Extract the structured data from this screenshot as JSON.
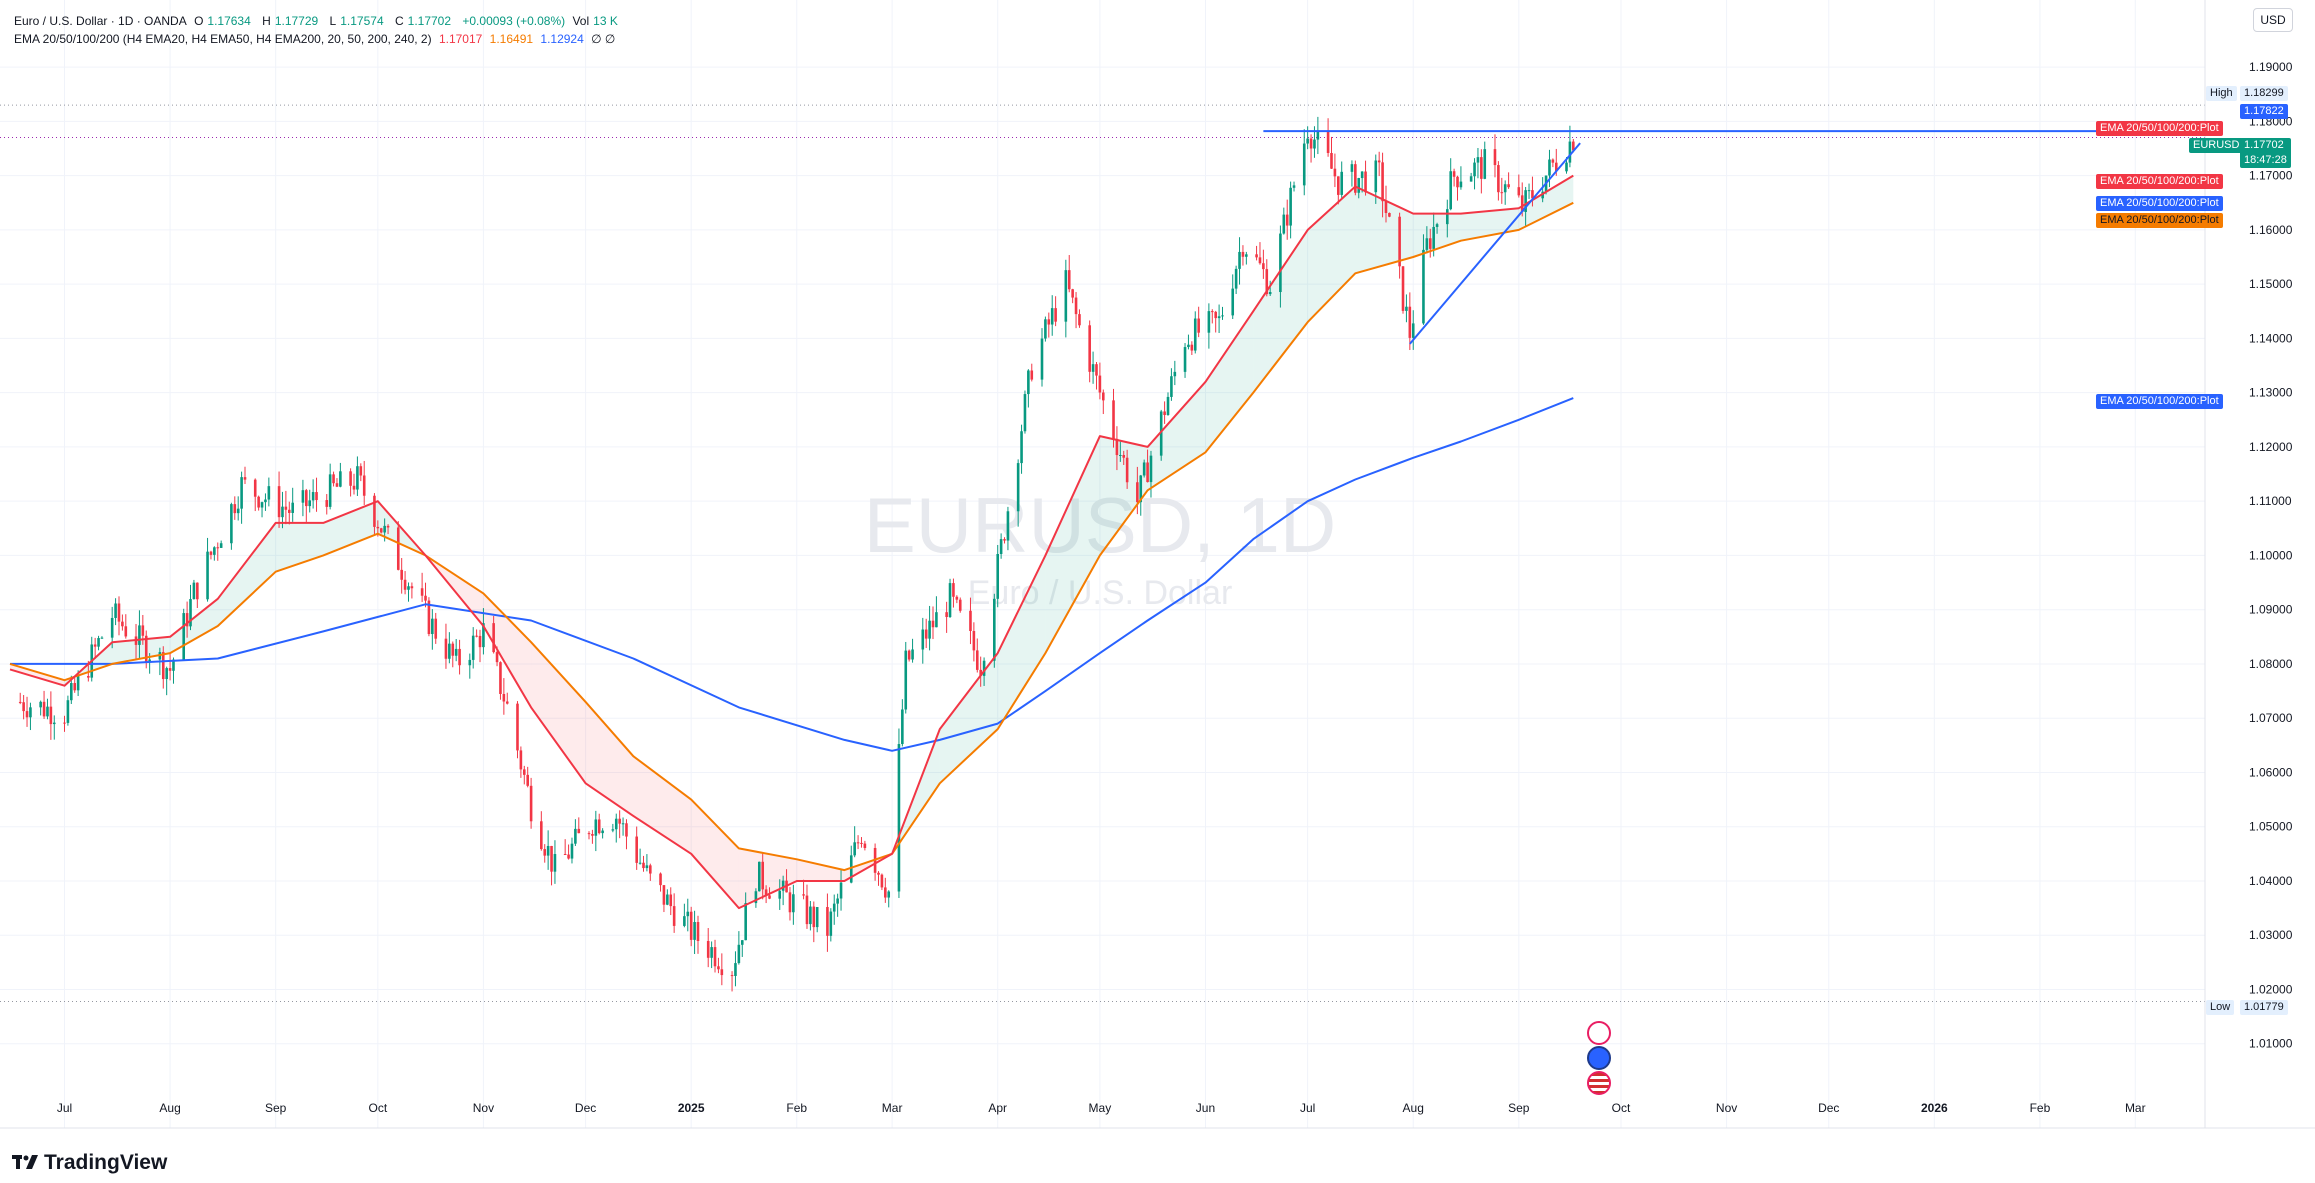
{
  "legend": {
    "symbol_line": "Euro / U.S. Dollar · 1D · OANDA",
    "o_label": "O",
    "o_value": "1.17634",
    "h_label": "H",
    "h_value": "1.17729",
    "l_label": "L",
    "l_value": "1.17574",
    "c_label": "C",
    "c_value": "1.17702",
    "change": "+0.00093 (+0.08%)",
    "vol_label": "Vol",
    "vol_value": "13 K",
    "ema_title": "EMA 20/50/100/200 (H4 EMA20, H4 EMA50, H4 EMA200, 20, 50, 200, 240, 2)",
    "ema_val1": "1.17017",
    "ema_val2": "1.16491",
    "ema_val3": "1.12924",
    "ema_tail": "∅ ∅"
  },
  "currency_button": "USD",
  "watermark": {
    "symbol": "EURUSD, 1D",
    "name": "Euro / U.S. Dollar"
  },
  "price_tags": {
    "high_label": "High",
    "high_value": "1.18299",
    "blue_level": "1.17822",
    "current_symbol": "EURUSD",
    "current_value": "1.17702",
    "countdown": "18:47:28",
    "low_label": "Low",
    "low_value": "1.01779",
    "ema_plot_label": "EMA 20/50/100/200:Plot"
  },
  "y_axis_ticks": [
    "1.19000",
    "1.18000",
    "1.17000",
    "1.16000",
    "1.15000",
    "1.14000",
    "1.13000",
    "1.12000",
    "1.11000",
    "1.10000",
    "1.09000",
    "1.08000",
    "1.07000",
    "1.06000",
    "1.05000",
    "1.04000",
    "1.03000",
    "1.02000",
    "1.01000"
  ],
  "x_axis_ticks": [
    {
      "label": "Jul",
      "bold": false
    },
    {
      "label": "Aug",
      "bold": false
    },
    {
      "label": "Sep",
      "bold": false
    },
    {
      "label": "Oct",
      "bold": false
    },
    {
      "label": "Nov",
      "bold": false
    },
    {
      "label": "Dec",
      "bold": false
    },
    {
      "label": "2025",
      "bold": true
    },
    {
      "label": "Feb",
      "bold": false
    },
    {
      "label": "Mar",
      "bold": false
    },
    {
      "label": "Apr",
      "bold": false
    },
    {
      "label": "May",
      "bold": false
    },
    {
      "label": "Jun",
      "bold": false
    },
    {
      "label": "Jul",
      "bold": false
    },
    {
      "label": "Aug",
      "bold": false
    },
    {
      "label": "Sep",
      "bold": false
    },
    {
      "label": "Oct",
      "bold": false
    },
    {
      "label": "Nov",
      "bold": false
    },
    {
      "label": "Dec",
      "bold": false
    },
    {
      "label": "2026",
      "bold": true
    },
    {
      "label": "Feb",
      "bold": false
    },
    {
      "label": "Mar",
      "bold": false
    }
  ],
  "brand": "TradingView",
  "colors": {
    "up": "#089981",
    "down": "#f23645",
    "ema20": "#f23645",
    "ema50": "#f57c00",
    "ema200": "#2962ff",
    "trend": "#2962ff"
  },
  "chart_data": {
    "type": "line",
    "symbol": "EURUSD",
    "timeframe": "1D",
    "ylim": [
      1.0,
      1.195
    ],
    "x_range": [
      "2024-06-15",
      "2026-03-20"
    ],
    "closes": [
      [
        "2024-06-18",
        1.073
      ],
      [
        "2024-07-01",
        1.071
      ],
      [
        "2024-07-15",
        1.089
      ],
      [
        "2024-08-01",
        1.079
      ],
      [
        "2024-08-08",
        1.093
      ],
      [
        "2024-08-22",
        1.113
      ],
      [
        "2024-09-06",
        1.108
      ],
      [
        "2024-09-17",
        1.112
      ],
      [
        "2024-09-25",
        1.114
      ],
      [
        "2024-10-03",
        1.104
      ],
      [
        "2024-10-15",
        1.089
      ],
      [
        "2024-10-24",
        1.08
      ],
      [
        "2024-11-01",
        1.086
      ],
      [
        "2024-11-08",
        1.072
      ],
      [
        "2024-11-15",
        1.054
      ],
      [
        "2024-11-22",
        1.042
      ],
      [
        "2024-12-03",
        1.051
      ],
      [
        "2024-12-10",
        1.052
      ],
      [
        "2024-12-20",
        1.04
      ],
      [
        "2025-01-02",
        1.03
      ],
      [
        "2025-01-13",
        1.024
      ],
      [
        "2025-01-20",
        1.041
      ],
      [
        "2025-01-31",
        1.036
      ],
      [
        "2025-02-10",
        1.031
      ],
      [
        "2025-02-20",
        1.049
      ],
      [
        "2025-02-28",
        1.038
      ],
      [
        "2025-03-05",
        1.08
      ],
      [
        "2025-03-18",
        1.092
      ],
      [
        "2025-03-27",
        1.08
      ],
      [
        "2025-04-03",
        1.105
      ],
      [
        "2025-04-11",
        1.135
      ],
      [
        "2025-04-21",
        1.15
      ],
      [
        "2025-05-01",
        1.13
      ],
      [
        "2025-05-12",
        1.11
      ],
      [
        "2025-05-26",
        1.14
      ],
      [
        "2025-06-05",
        1.143
      ],
      [
        "2025-06-12",
        1.158
      ],
      [
        "2025-06-20",
        1.15
      ],
      [
        "2025-07-01",
        1.179
      ],
      [
        "2025-07-10",
        1.169
      ],
      [
        "2025-07-22",
        1.17
      ],
      [
        "2025-07-31",
        1.141
      ],
      [
        "2025-08-05",
        1.157
      ],
      [
        "2025-08-13",
        1.17
      ],
      [
        "2025-08-22",
        1.172
      ],
      [
        "2025-09-02",
        1.164
      ],
      [
        "2025-09-10",
        1.171
      ],
      [
        "2025-09-17",
        1.177
      ]
    ],
    "high": 1.18299,
    "low": 1.01779,
    "last": 1.17702,
    "series": [
      {
        "name": "EMA 20/50/100/200:Plot",
        "role": "ema20",
        "last": 1.17017,
        "points": [
          [
            "2024-06-15",
            1.079
          ],
          [
            "2024-07-01",
            1.076
          ],
          [
            "2024-07-15",
            1.084
          ],
          [
            "2024-08-01",
            1.085
          ],
          [
            "2024-08-15",
            1.092
          ],
          [
            "2024-09-01",
            1.106
          ],
          [
            "2024-09-15",
            1.106
          ],
          [
            "2024-10-01",
            1.11
          ],
          [
            "2024-10-15",
            1.1
          ],
          [
            "2024-11-01",
            1.087
          ],
          [
            "2024-11-15",
            1.072
          ],
          [
            "2024-12-01",
            1.058
          ],
          [
            "2024-12-15",
            1.052
          ],
          [
            "2025-01-01",
            1.045
          ],
          [
            "2025-01-15",
            1.035
          ],
          [
            "2025-02-01",
            1.04
          ],
          [
            "2025-02-15",
            1.04
          ],
          [
            "2025-03-01",
            1.045
          ],
          [
            "2025-03-15",
            1.068
          ],
          [
            "2025-04-01",
            1.082
          ],
          [
            "2025-04-15",
            1.1
          ],
          [
            "2025-05-01",
            1.122
          ],
          [
            "2025-05-15",
            1.12
          ],
          [
            "2025-06-01",
            1.132
          ],
          [
            "2025-06-15",
            1.145
          ],
          [
            "2025-07-01",
            1.16
          ],
          [
            "2025-07-15",
            1.168
          ],
          [
            "2025-08-01",
            1.163
          ],
          [
            "2025-08-15",
            1.163
          ],
          [
            "2025-09-01",
            1.164
          ],
          [
            "2025-09-17",
            1.17
          ]
        ]
      },
      {
        "name": "EMA 20/50/100/200:Plot",
        "role": "ema50",
        "last": 1.16491,
        "points": [
          [
            "2024-06-15",
            1.08
          ],
          [
            "2024-07-01",
            1.077
          ],
          [
            "2024-07-15",
            1.08
          ],
          [
            "2024-08-01",
            1.082
          ],
          [
            "2024-08-15",
            1.087
          ],
          [
            "2024-09-01",
            1.097
          ],
          [
            "2024-09-15",
            1.1
          ],
          [
            "2024-10-01",
            1.104
          ],
          [
            "2024-10-15",
            1.1
          ],
          [
            "2024-11-01",
            1.093
          ],
          [
            "2024-11-15",
            1.084
          ],
          [
            "2024-12-01",
            1.073
          ],
          [
            "2024-12-15",
            1.063
          ],
          [
            "2025-01-01",
            1.055
          ],
          [
            "2025-01-15",
            1.046
          ],
          [
            "2025-02-01",
            1.044
          ],
          [
            "2025-02-15",
            1.042
          ],
          [
            "2025-03-01",
            1.045
          ],
          [
            "2025-03-15",
            1.058
          ],
          [
            "2025-04-01",
            1.068
          ],
          [
            "2025-04-15",
            1.082
          ],
          [
            "2025-05-01",
            1.1
          ],
          [
            "2025-05-15",
            1.112
          ],
          [
            "2025-06-01",
            1.119
          ],
          [
            "2025-06-15",
            1.13
          ],
          [
            "2025-07-01",
            1.143
          ],
          [
            "2025-07-15",
            1.152
          ],
          [
            "2025-08-01",
            1.155
          ],
          [
            "2025-08-15",
            1.158
          ],
          [
            "2025-09-01",
            1.16
          ],
          [
            "2025-09-17",
            1.165
          ]
        ]
      },
      {
        "name": "EMA 20/50/100/200:Plot",
        "role": "ema200",
        "last": 1.12924,
        "points": [
          [
            "2024-06-15",
            1.08
          ],
          [
            "2024-07-15",
            1.08
          ],
          [
            "2024-08-15",
            1.081
          ],
          [
            "2024-09-15",
            1.086
          ],
          [
            "2024-10-15",
            1.091
          ],
          [
            "2024-11-15",
            1.088
          ],
          [
            "2024-12-15",
            1.081
          ],
          [
            "2025-01-15",
            1.072
          ],
          [
            "2025-02-15",
            1.066
          ],
          [
            "2025-03-01",
            1.064
          ],
          [
            "2025-03-15",
            1.066
          ],
          [
            "2025-04-01",
            1.069
          ],
          [
            "2025-04-15",
            1.075
          ],
          [
            "2025-05-01",
            1.082
          ],
          [
            "2025-05-15",
            1.088
          ],
          [
            "2025-06-01",
            1.095
          ],
          [
            "2025-06-15",
            1.103
          ],
          [
            "2025-07-01",
            1.11
          ],
          [
            "2025-07-15",
            1.114
          ],
          [
            "2025-08-01",
            1.118
          ],
          [
            "2025-08-15",
            1.121
          ],
          [
            "2025-09-01",
            1.125
          ],
          [
            "2025-09-17",
            1.129
          ]
        ]
      }
    ],
    "annotations": {
      "resistance_line": {
        "from": [
          "2025-06-18",
          1.1782
        ],
        "to": [
          "2026-03-20",
          1.1782
        ]
      },
      "support_trendline": {
        "from": [
          "2025-07-31",
          1.139
        ],
        "to": [
          "2025-09-19",
          1.176
        ]
      }
    },
    "grid": true
  }
}
